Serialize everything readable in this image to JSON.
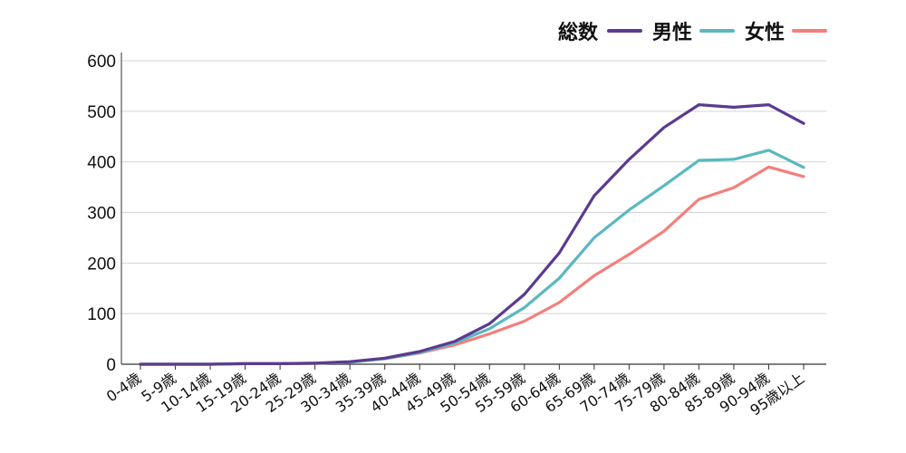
{
  "chart_data": {
    "type": "line",
    "title": "",
    "xlabel": "",
    "ylabel": "",
    "ylim": [
      0,
      600
    ],
    "yticks": [
      0,
      100,
      200,
      300,
      400,
      500,
      600
    ],
    "grid": true,
    "legend_position": "top-right",
    "categories": [
      "0-4歳",
      "5-9歳",
      "10-14歳",
      "15-19歳",
      "20-24歳",
      "25-29歳",
      "30-34歳",
      "35-39歳",
      "40-44歳",
      "45-49歳",
      "50-54歳",
      "55-59歳",
      "60-64歳",
      "65-69歳",
      "70-74歳",
      "75-79歳",
      "80-84歳",
      "85-89歳",
      "90-94歳",
      "95歳以上"
    ],
    "series": [
      {
        "name": "総数",
        "color": "#5b3a91",
        "values": [
          0,
          0,
          0,
          1,
          1,
          2,
          5,
          12,
          25,
          45,
          80,
          138,
          220,
          333,
          405,
          468,
          513,
          508,
          513,
          476
        ]
      },
      {
        "name": "男性",
        "color": "#5ab8c0",
        "values": [
          0,
          0,
          0,
          1,
          1,
          2,
          4,
          11,
          23,
          42,
          70,
          112,
          170,
          250,
          305,
          353,
          403,
          405,
          423,
          389
        ]
      },
      {
        "name": "女性",
        "color": "#f47f7b",
        "values": [
          0,
          0,
          0,
          1,
          1,
          2,
          4,
          11,
          22,
          38,
          60,
          85,
          122,
          175,
          217,
          263,
          326,
          349,
          390,
          371
        ]
      }
    ]
  }
}
